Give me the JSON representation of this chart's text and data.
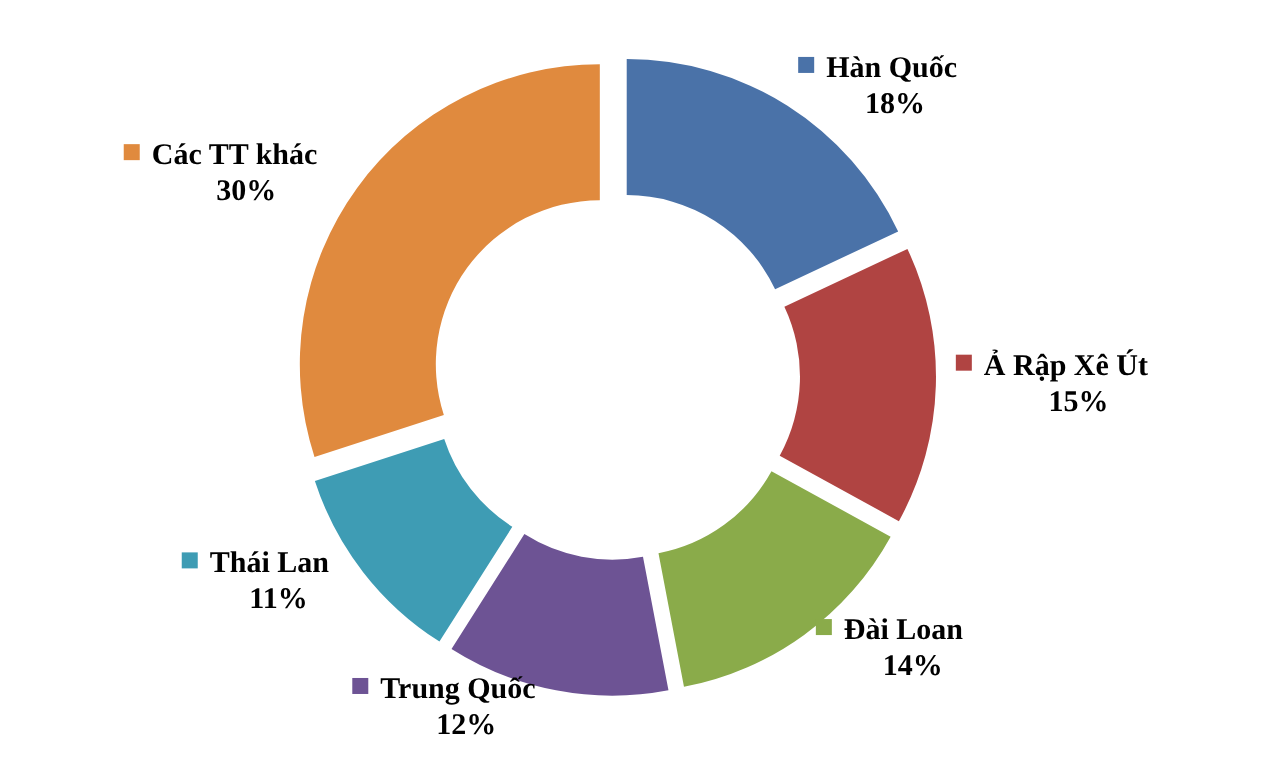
{
  "chart_data": {
    "type": "donut",
    "categories": [
      "Hàn Quốc",
      "Ả Rập Xê Út",
      "Đài Loan",
      "Trung Quốc",
      "Thái Lan",
      "Các TT khác"
    ],
    "values": [
      18,
      15,
      14,
      12,
      11,
      30
    ],
    "colors": [
      "#4a72a8",
      "#b04442",
      "#8aab4a",
      "#6d5394",
      "#3e9cb4",
      "#e08a3e"
    ],
    "value_labels": [
      "18%",
      "15%",
      "14%",
      "12%",
      "11%",
      "30%"
    ],
    "legend": "right"
  }
}
